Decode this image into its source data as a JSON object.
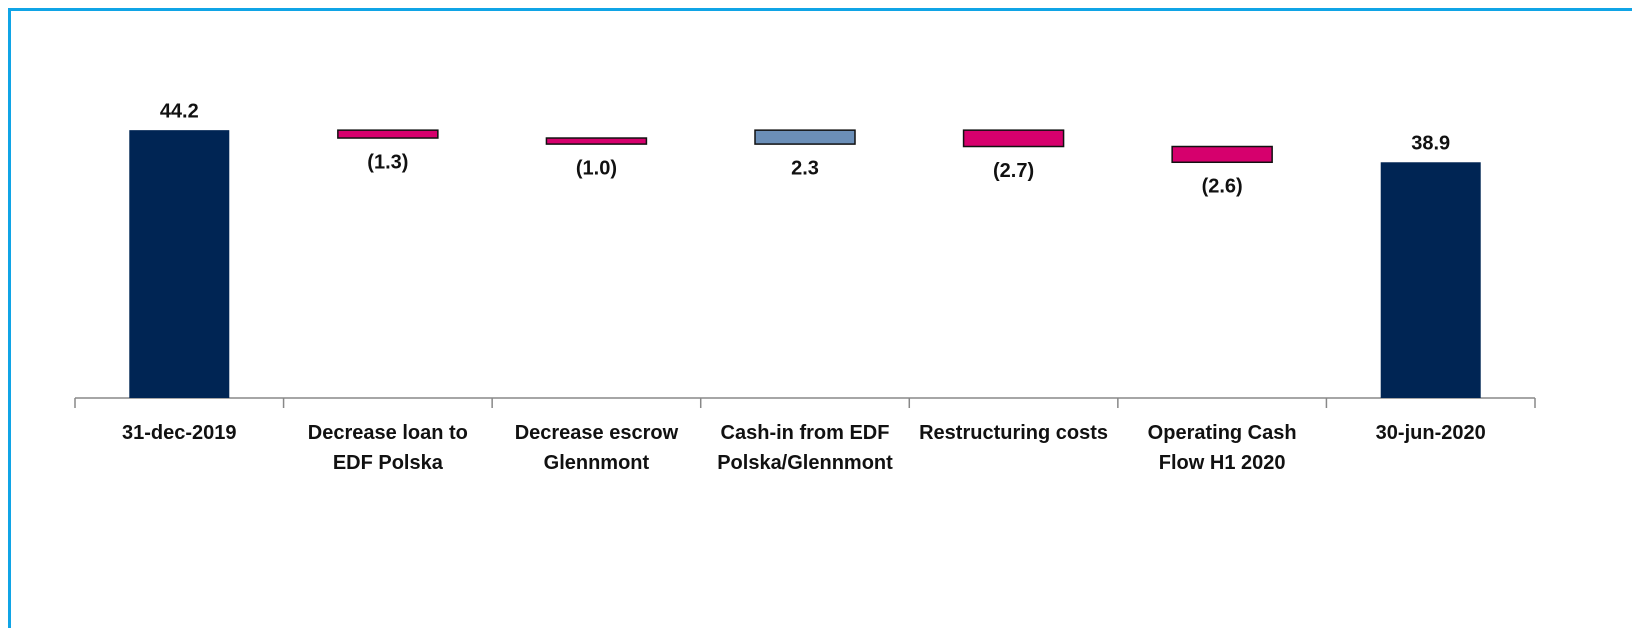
{
  "chart_data": {
    "type": "waterfall",
    "categories": [
      "31-dec-2019",
      "Decrease loan to EDF Polska",
      "Decrease escrow Glennmont",
      "Cash-in from EDF Polska/Glennmont",
      "Restructuring costs",
      "Operating Cash Flow H1 2020",
      "30-jun-2020"
    ],
    "values": [
      44.2,
      -1.3,
      -1.0,
      2.3,
      -2.7,
      -2.6,
      38.9
    ],
    "value_labels": [
      "44.2",
      "(1.3)",
      "(1.0)",
      "2.3",
      "(2.7)",
      "(2.6)",
      "38.9"
    ],
    "measure": [
      "absolute",
      "relative",
      "relative",
      "relative",
      "relative",
      "relative",
      "absolute"
    ],
    "colors": [
      "#002554",
      "#d6006d",
      "#d6006d",
      "#6b8fb8",
      "#d6006d",
      "#d6006d",
      "#002554"
    ],
    "ylim": [
      0,
      50
    ]
  }
}
